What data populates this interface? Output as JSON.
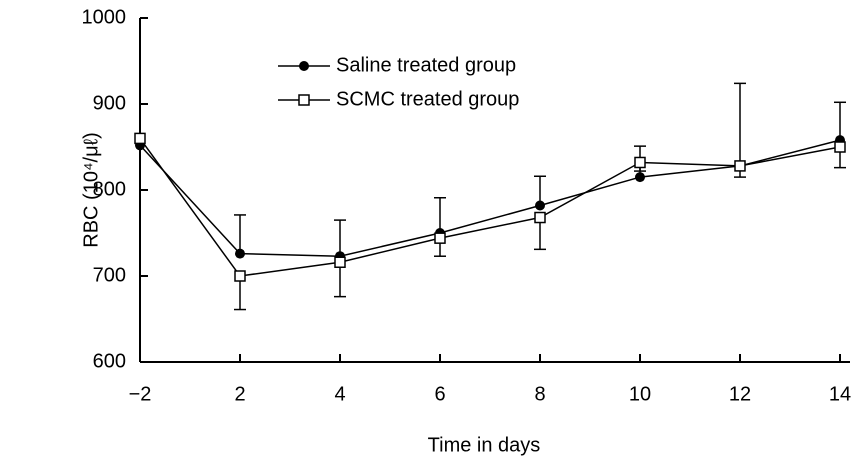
{
  "chart_data": {
    "type": "line",
    "x_label": "Time in days",
    "y_label": "RBC (10⁴/μℓ)",
    "categories": [
      "−2",
      "2",
      "4",
      "6",
      "8",
      "10",
      "12",
      "14"
    ],
    "series": [
      {
        "name": "Saline treated group",
        "color": "#000000",
        "marker": "filled-circle",
        "values": [
          852,
          726,
          723,
          750,
          782,
          815,
          828,
          858
        ],
        "errors_up": [
          null,
          45,
          42,
          41,
          34,
          36,
          96,
          44
        ]
      },
      {
        "name": "SCMC treated group",
        "color": "#000000",
        "marker": "open-square",
        "values": [
          860,
          700,
          716,
          744,
          768,
          832,
          828,
          850
        ],
        "errors_down": [
          null,
          39,
          40,
          21,
          37,
          10,
          13,
          24
        ]
      }
    ],
    "ylim": [
      600,
      1000
    ],
    "yticks": [
      600,
      700,
      800,
      900,
      1000
    ]
  }
}
